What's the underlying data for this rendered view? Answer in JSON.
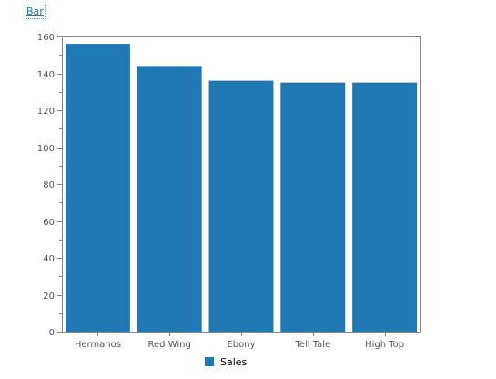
{
  "header": {
    "link_label": "Bar"
  },
  "colors": {
    "bar": "#1f77b4",
    "axis": "#888888",
    "tick_text": "#555555"
  },
  "chart_data": {
    "type": "bar",
    "categories": [
      "Hermanos",
      "Red Wing",
      "Ebony",
      "Tell Tale",
      "High Top"
    ],
    "series": [
      {
        "name": "Sales",
        "values": [
          156,
          144,
          136,
          135,
          135
        ]
      }
    ],
    "ylim": [
      0,
      160
    ],
    "yticks": [
      "0",
      "20",
      "40",
      "60",
      "80",
      "100",
      "120",
      "140",
      "160"
    ],
    "grid": false,
    "legend": "bottom-center"
  }
}
